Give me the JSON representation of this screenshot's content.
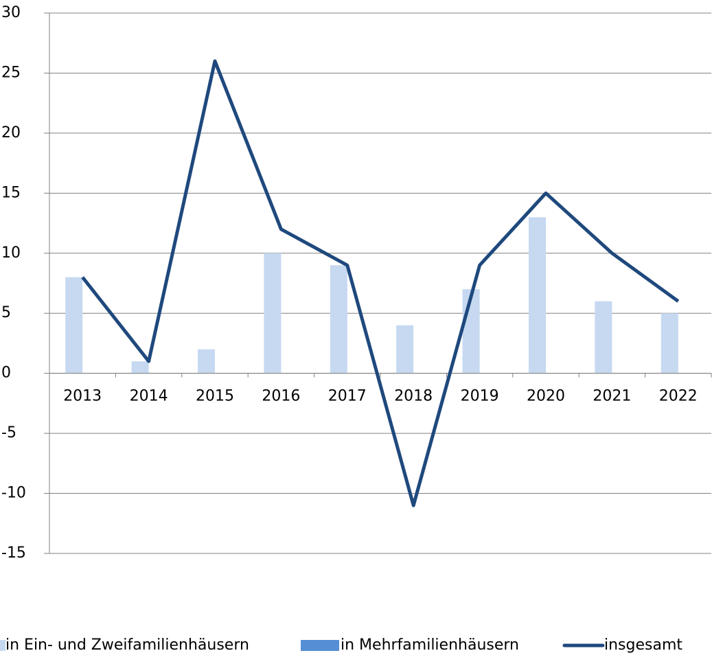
{
  "chart_data": {
    "type": "bar-line",
    "categories": [
      "2013",
      "2014",
      "2015",
      "2016",
      "2017",
      "2018",
      "2019",
      "2020",
      "2021",
      "2022"
    ],
    "series": [
      {
        "name": "in Ein- und Zweifamilienhäusern",
        "type": "bar",
        "color": "#c6d9f1",
        "values": [
          8,
          1,
          2,
          10,
          9,
          4,
          7,
          13,
          6,
          5
        ]
      },
      {
        "name": "in Mehrfamilienhäusern",
        "type": "bar",
        "color": "#558ed5",
        "values": [
          0,
          0,
          0,
          0,
          0,
          0,
          0,
          0,
          0,
          0
        ]
      },
      {
        "name": "insgesamt",
        "type": "line",
        "color": "#1f497d",
        "values": [
          8,
          1,
          26,
          12,
          9,
          -11,
          9,
          15,
          10,
          6
        ]
      }
    ],
    "ylim": [
      -15,
      30
    ],
    "yticks": [
      -15,
      -10,
      -5,
      0,
      5,
      10,
      15,
      20,
      25,
      30
    ],
    "grid": true,
    "legend": "bottom"
  }
}
